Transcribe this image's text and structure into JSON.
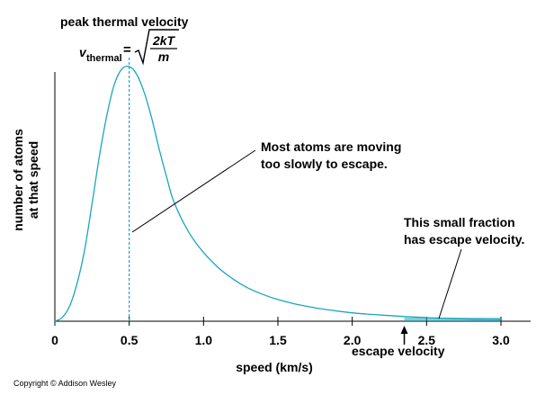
{
  "chart_data": {
    "type": "line",
    "xlabel": "speed (km/s)",
    "ylabel": [
      "number of atoms",
      "at that speed"
    ],
    "xlim": [
      0,
      3.0
    ],
    "x_ticks": [
      0,
      0.5,
      1.0,
      1.5,
      2.0,
      2.5,
      3.0
    ],
    "x_tick_labels": [
      "0",
      "0.5",
      "1.0",
      "1.5",
      "2.0",
      "2.5",
      "3.0"
    ],
    "y_ticks_shown": false,
    "grid": false,
    "peak_speed": 0.5,
    "escape_speed": 2.35,
    "escape_region": [
      2.35,
      3.0
    ],
    "series": [
      {
        "color": "#1aa6bd",
        "x": [
          0,
          0.05,
          0.1,
          0.15,
          0.2,
          0.25,
          0.3,
          0.35,
          0.4,
          0.45,
          0.5,
          0.55,
          0.6,
          0.65,
          0.7,
          0.75,
          0.8,
          0.9,
          1.0,
          1.1,
          1.2,
          1.3,
          1.4,
          1.5,
          1.6,
          1.7,
          1.8,
          1.9,
          2.0,
          2.1,
          2.2,
          2.3,
          2.4,
          2.5,
          2.6,
          2.7,
          2.8,
          2.9,
          3.0
        ],
        "y": [
          0,
          1.5,
          6,
          15,
          28,
          46,
          65,
          81,
          93,
          99,
          100,
          97,
          90,
          80,
          68,
          57,
          47,
          35,
          27,
          21,
          16.5,
          13,
          10.5,
          8.5,
          7,
          5.8,
          4.8,
          4,
          3.3,
          2.8,
          2.4,
          2,
          1.7,
          1.4,
          1.2,
          1,
          0.8,
          0.7,
          0.6
        ]
      }
    ],
    "annotations": {
      "peak_title": "peak thermal velocity",
      "formula_v": "v",
      "formula_sub": "thermal",
      "formula_eq": "=",
      "formula_num": "2kT",
      "formula_den": "m",
      "most_atoms_line1": "Most atoms are moving",
      "most_atoms_line2": "too slowly to escape.",
      "fraction_line1": "This small fraction",
      "fraction_line2": "has escape velocity.",
      "escape_label": "escape velocity"
    }
  },
  "copyright": "Copyright © Addison Wesley"
}
